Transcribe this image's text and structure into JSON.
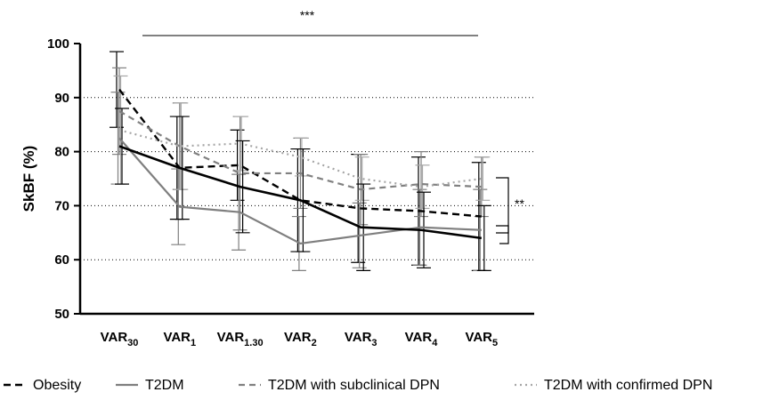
{
  "chart_data": {
    "type": "line",
    "ylabel": "SkBF (%)",
    "ylim": [
      50,
      100
    ],
    "yticks": [
      50,
      60,
      70,
      80,
      90,
      100
    ],
    "grid": "horizontal dotted at 60, 70, 80, 90",
    "categories": [
      {
        "base": "VAR",
        "sub": "30"
      },
      {
        "base": "VAR",
        "sub": "1"
      },
      {
        "base": "VAR",
        "sub": "1.30"
      },
      {
        "base": "VAR",
        "sub": "2"
      },
      {
        "base": "VAR",
        "sub": "3"
      },
      {
        "base": "VAR",
        "sub": "4"
      },
      {
        "base": "VAR",
        "sub": "5"
      }
    ],
    "series": [
      {
        "name": "Obesity",
        "style": "dashed-black",
        "color": "#000000",
        "values": [
          91.5,
          77.0,
          77.5,
          71.0,
          69.5,
          69.0,
          68.0
        ],
        "errors": [
          7.0,
          9.5,
          6.5,
          9.5,
          10.0,
          10.0,
          10.0
        ]
      },
      {
        "name": "T2DM",
        "style": "solid-gray",
        "color": "#7f7f7f",
        "values": [
          82.5,
          69.8,
          68.8,
          63.0,
          64.5,
          66.0,
          65.5
        ],
        "errors": [
          8.5,
          7.0,
          7.0,
          5.0,
          6.0,
          7.0,
          7.5
        ]
      },
      {
        "name": "T2DM with subclinical DPN",
        "style": "dashed-gray",
        "color": "#808080",
        "values": [
          87.5,
          81.0,
          76.0,
          76.0,
          73.0,
          74.0,
          73.5
        ],
        "errors": [
          8.0,
          8.0,
          10.5,
          6.5,
          6.5,
          6.0,
          5.5
        ]
      },
      {
        "name": "T2DM with confirmed DPN",
        "style": "dotted-gray",
        "color": "#a6a6a6",
        "values": [
          84.0,
          81.0,
          81.5,
          79.0,
          75.0,
          73.5,
          75.0
        ],
        "errors": [
          10.0,
          8.0,
          5.0,
          3.5,
          4.0,
          4.0,
          4.0
        ]
      },
      {
        "name": "",
        "style": "solid-black",
        "color": "#000000",
        "values": [
          81.0,
          77.0,
          73.5,
          71.0,
          66.0,
          65.5,
          64.0
        ],
        "errors": [
          7.0,
          9.5,
          8.5,
          9.5,
          8.0,
          7.0,
          6.0
        ]
      }
    ],
    "significance": [
      {
        "label": "***",
        "span": "VAR30 to VAR5"
      },
      {
        "label": "**",
        "span": "VAR5 series comparison"
      }
    ]
  }
}
